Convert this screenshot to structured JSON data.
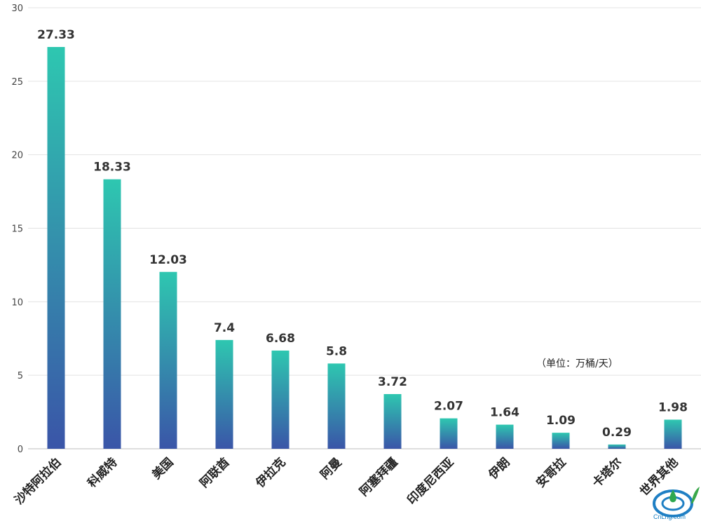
{
  "chart_data": {
    "type": "bar",
    "title": "",
    "xlabel": "",
    "ylabel": "",
    "unit_note": "（单位：万桶/天）",
    "categories": [
      "沙特阿拉伯",
      "科威特",
      "美国",
      "阿联酋",
      "伊拉克",
      "阿曼",
      "阿塞拜疆",
      "印度尼西亚",
      "伊朗",
      "安哥拉",
      "卡塔尔",
      "世界其他"
    ],
    "values": [
      27.33,
      18.33,
      12.03,
      7.4,
      6.68,
      5.8,
      3.72,
      2.07,
      1.64,
      1.09,
      0.29,
      1.98
    ],
    "value_labels": [
      "27.33",
      "18.33",
      "12.03",
      "7.4",
      "6.68",
      "5.8",
      "3.72",
      "2.07",
      "1.64",
      "1.09",
      "0.29",
      "1.98"
    ],
    "ylim": [
      0,
      30
    ],
    "yticks": [
      0,
      5,
      10,
      15,
      20,
      25,
      30
    ],
    "grid": true,
    "legend": "none",
    "colors": {
      "bar_top": "#2ec7b0",
      "bar_bottom": "#3a55a8"
    }
  },
  "watermark": {
    "text": "CnLng.com"
  }
}
